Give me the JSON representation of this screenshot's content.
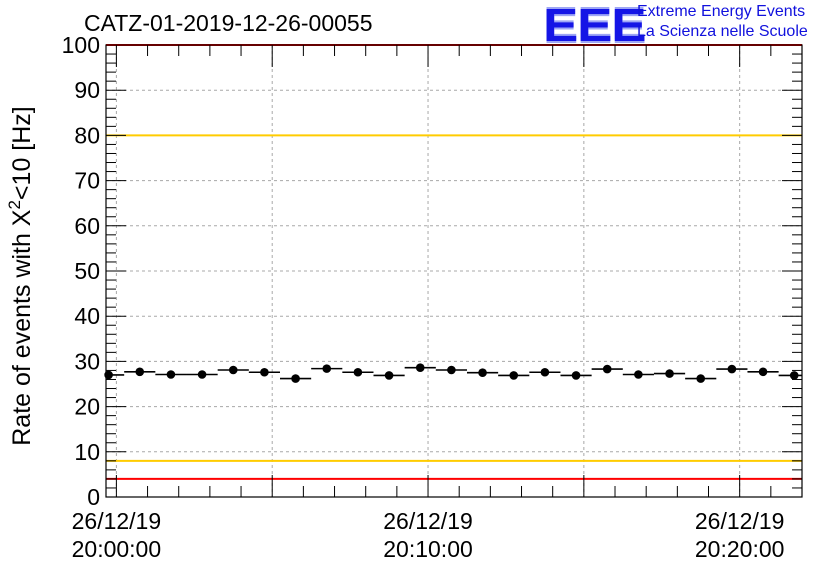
{
  "title": "CATZ-01-2019-12-26-00055",
  "logo": {
    "mark": "EEE",
    "line1": "Extreme Energy Events",
    "line2": "La Scienza nelle Scuole",
    "color": "#1515e6"
  },
  "chart_data": {
    "type": "scatter",
    "title": "CATZ-01-2019-12-26-00055",
    "ylabel": "Rate of events with X²<10 [Hz]",
    "xlabel": "",
    "ylim": [
      0,
      100
    ],
    "yticks": [
      "0",
      "10",
      "20",
      "30",
      "40",
      "50",
      "60",
      "70",
      "80",
      "90",
      "100"
    ],
    "xticks": [
      {
        "date": "26/12/19",
        "time": "20:00:00"
      },
      {
        "date": "26/12/19",
        "time": "20:10:00"
      },
      {
        "date": "26/12/19",
        "time": "20:20:00"
      }
    ],
    "x_unit": "time of day",
    "xlim": [
      "19:59:40",
      "20:22:00"
    ],
    "grid": true,
    "series": [
      {
        "x": [
          "19:59:45",
          "20:00:45",
          "20:01:45",
          "20:02:45",
          "20:03:45",
          "20:04:45",
          "20:05:45",
          "20:06:45",
          "20:07:45",
          "20:08:45",
          "20:09:45",
          "20:10:45",
          "20:11:45",
          "20:12:45",
          "20:13:45",
          "20:14:45",
          "20:15:45",
          "20:16:45",
          "20:17:45",
          "20:18:45",
          "20:19:45",
          "20:20:45",
          "20:21:45"
        ],
        "values": [
          27.0,
          27.7,
          27.1,
          27.1,
          28.1,
          27.6,
          26.2,
          28.4,
          27.6,
          26.9,
          28.6,
          28.1,
          27.5,
          26.9,
          27.6,
          26.9,
          28.3,
          27.1,
          27.3,
          26.2,
          28.3,
          27.7,
          26.9
        ],
        "x_error_seconds": 30,
        "color": "#000000"
      }
    ],
    "reference_lines": [
      {
        "y": 100,
        "color": "#ff0000"
      },
      {
        "y": 80,
        "color": "#ffcc00"
      },
      {
        "y": 8,
        "color": "#ffcc00"
      },
      {
        "y": 4,
        "color": "#ff0000"
      }
    ]
  }
}
